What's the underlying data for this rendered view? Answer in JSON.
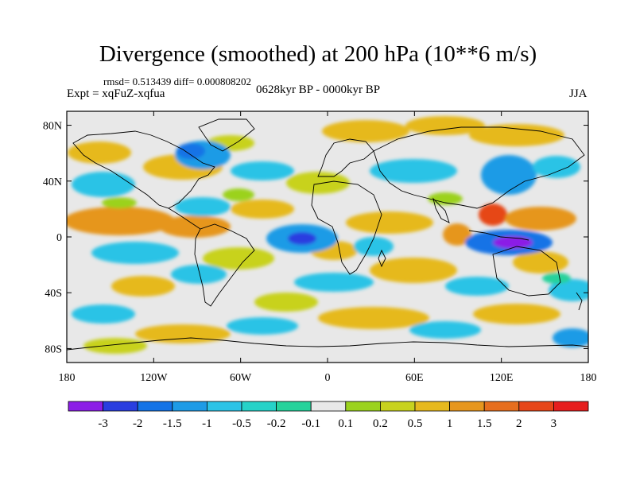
{
  "header": {
    "title": "Divergence (smoothed) at 200 hPa (10**6 m/s)",
    "stats": "rmsd= 0.513439 diff= 0.000808202",
    "expt": "Expt = xqFuZ-xqfua",
    "period": "0628kyr BP - 0000kyr BP",
    "season": "JJA"
  },
  "axes": {
    "lat_labels": [
      "80N",
      "40N",
      "0",
      "40S",
      "80S"
    ],
    "lon_labels": [
      "180",
      "120W",
      "60W",
      "0",
      "60E",
      "120E",
      "180"
    ]
  },
  "colorbar": {
    "labels": [
      "-3",
      "-2",
      "-1.5",
      "-1",
      "-0.5",
      "-0.2",
      "-0.1",
      "0.1",
      "0.2",
      "0.5",
      "1",
      "1.5",
      "2",
      "3"
    ],
    "colors": [
      "#8c1ee6",
      "#2a3ee0",
      "#1473e6",
      "#1e9be6",
      "#2cc3e6",
      "#26d2c8",
      "#26d29b",
      "#e8e8e8",
      "#9bd21e",
      "#c8d21e",
      "#e6b91e",
      "#e6961e",
      "#e66e1e",
      "#e64619",
      "#e61e1e"
    ]
  },
  "fill": {
    "neutral": "#e8e8e8",
    "coast": "#000000"
  }
}
